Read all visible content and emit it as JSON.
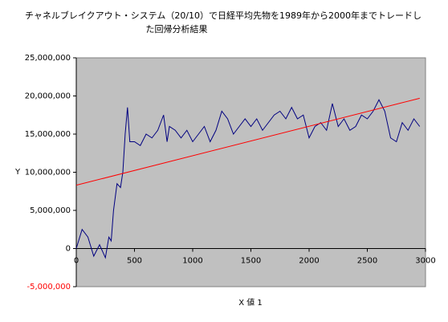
{
  "chart_data": {
    "type": "line",
    "title": [
      "チャネルブレイクアウト・システム（20/10）で日経平均先物を1989年から2000年までトレードし",
      "た回帰分析結果"
    ],
    "xlabel": "X 値 1",
    "ylabel": "Y",
    "series": [
      {
        "color": "#000080",
        "x": [
          0,
          50,
          100,
          150,
          200,
          250,
          280,
          300,
          320,
          350,
          380,
          400,
          420,
          440,
          460,
          500,
          550,
          600,
          650,
          700,
          750,
          780,
          800,
          850,
          900,
          950,
          1000,
          1050,
          1100,
          1150,
          1200,
          1250,
          1300,
          1350,
          1400,
          1450,
          1500,
          1550,
          1600,
          1650,
          1700,
          1750,
          1800,
          1850,
          1900,
          1950,
          2000,
          2050,
          2100,
          2150,
          2200,
          2250,
          2300,
          2350,
          2400,
          2450,
          2500,
          2550,
          2600,
          2650,
          2700,
          2750,
          2800,
          2850,
          2900,
          2950
        ],
        "values": [
          0,
          2500000,
          1500000,
          -1000000,
          500000,
          -1200000,
          1500000,
          1000000,
          5000000,
          8500000,
          8000000,
          10000000,
          15000000,
          18500000,
          14000000,
          14000000,
          13500000,
          15000000,
          14500000,
          15500000,
          17500000,
          14000000,
          16000000,
          15500000,
          14500000,
          15500000,
          14000000,
          15000000,
          16000000,
          14000000,
          15500000,
          18000000,
          17000000,
          15000000,
          16000000,
          17000000,
          16000000,
          17000000,
          15500000,
          16500000,
          17500000,
          18000000,
          17000000,
          18500000,
          17000000,
          17500000,
          14500000,
          16000000,
          16500000,
          15500000,
          19000000,
          16000000,
          17000000,
          15500000,
          16000000,
          17500000,
          17000000,
          18000000,
          19500000,
          18000000,
          14500000,
          14000000,
          16500000,
          15500000,
          17000000,
          16000000
        ]
      },
      {
        "color": "#ff0000",
        "x": [
          0,
          2950
        ],
        "values": [
          8300000,
          19700000
        ]
      }
    ],
    "xlim": [
      0,
      3000
    ],
    "xticks": [
      0,
      500,
      1000,
      1500,
      2000,
      2500,
      3000
    ],
    "ylim": [
      -5000000,
      25000000
    ],
    "yticks": [
      {
        "value": -5000000,
        "label": "-5,000,000"
      },
      {
        "value": 0,
        "label": "0"
      },
      {
        "value": 5000000,
        "label": "5,000,000"
      },
      {
        "value": 10000000,
        "label": "10,000,000"
      },
      {
        "value": 15000000,
        "label": "15,000,000"
      },
      {
        "value": 20000000,
        "label": "20,000,000"
      },
      {
        "value": 25000000,
        "label": "25,000,000"
      }
    ],
    "negative_tick_color": "#ff0000",
    "plot_background": "#c0c0c0"
  }
}
